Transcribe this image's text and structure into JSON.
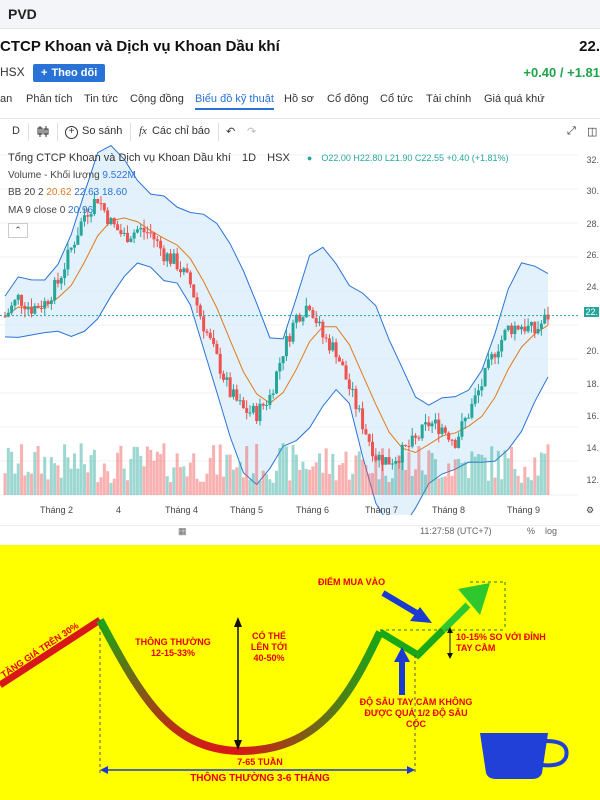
{
  "header": {
    "ticker": "PVD"
  },
  "company": {
    "name": "CTCP Khoan và Dịch vụ Khoan Dầu khí",
    "price": "22.",
    "exchange": "HSX",
    "follow_label": "Theo dõi",
    "change": "+0.40 / +1.81"
  },
  "tabs": [
    "an",
    "Phân tích",
    "Tin tức",
    "Cộng đồng",
    "Biểu đồ kỹ thuật",
    "Hồ sơ",
    "Cổ đông",
    "Cổ tức",
    "Tài chính",
    "Giá quá khứ"
  ],
  "active_tab": "Biểu đồ kỹ thuật",
  "toolbar": {
    "interval": "D",
    "compare_label": "So sánh",
    "indicators_label": "Các chỉ báo"
  },
  "legend": {
    "title": "Tổng CTCP Khoan và Dịch vụ Khoan Dầu khí",
    "timeframe": "1D",
    "exchange": "HSX",
    "ohlc": "O22.00  H22.80  L21.90  C22.55  +0.40 (+1.81%)",
    "volume_label": "Volume - Khối lượng",
    "volume_value": "9.522M",
    "bb_label": "BB 20 2",
    "bb_v1": "20.62",
    "bb_v2": "22.63",
    "bb_v3": "18.60",
    "ma_label": "MA 9 close 0",
    "ma_value": "20.96"
  },
  "chart_data": {
    "type": "candlestick",
    "y_ticks": [
      "32.",
      "30.",
      "28.",
      "26.",
      "24.",
      "22.",
      "20.",
      "18.",
      "16.",
      "14.",
      "12."
    ],
    "x_ticks": [
      "Tháng 2",
      "4",
      "Tháng 4",
      "Tháng 5",
      "Tháng 6",
      "Tháng 7",
      "Tháng 8",
      "Tháng 9"
    ],
    "current_price_label": "22.",
    "close_trajectory": [
      22.5,
      23.6,
      23.0,
      23.3,
      24.5,
      26.5,
      28.5,
      29.5,
      28.0,
      27.2,
      27.6,
      27.4,
      26.2,
      25.6,
      24.4,
      22.0,
      20.0,
      18.0,
      17.0,
      16.8,
      17.8,
      20.5,
      22.5,
      23.3,
      21.3,
      20.5,
      18.3,
      16.2,
      14.3,
      14.0,
      14.5,
      15.2,
      16.2,
      16.0,
      15.2,
      16.8,
      18.5,
      20.5,
      21.8,
      22.0,
      21.6,
      22.55
    ],
    "indicators": [
      "Bollinger Bands 20 2",
      "MA 9 close",
      "Volume"
    ],
    "colors": {
      "up": "#26a69a",
      "down": "#ef5350",
      "band": "#2a73d6",
      "band_fill": "#dbeefb",
      "ma": "#e07a1f"
    }
  },
  "bottom_bar": {
    "time": "11:27:58 (UTC+7)",
    "percent": "%",
    "log": "log"
  },
  "diagram": {
    "buy_point": "ĐIỂM MUA VÀO",
    "left_rise": "TĂNG GIÁ TRÊN 30%",
    "usual": "THÔNG THƯỜNG 12-15-33%",
    "can_reach": "CÓ THỂ LÊN TỚI 40-50%",
    "handle_depth": "ĐỘ SÂU TAY CẦM KHÔNG ĐƯỢC QUÁ 1/2 ĐỘ SÂU CỐC",
    "breakout": "10-15% SO VỚI ĐỈNH TAY CẦM",
    "weeks": "7-65 TUẦN",
    "months": "THÔNG THƯỜNG 3-6 THÁNG",
    "colors": {
      "background": "#ffff00",
      "text": "#e60000",
      "arrow": "#1a3ad1",
      "cup": "#2040d8"
    }
  }
}
